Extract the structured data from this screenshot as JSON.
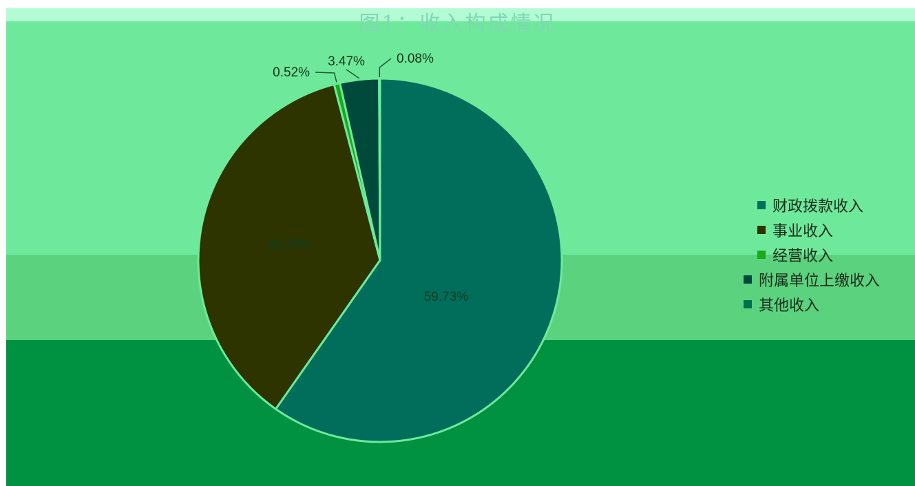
{
  "colors": {
    "background_top": "#b3fbd5",
    "background_main": "#6ee99b",
    "background_mid": "#5bd27e",
    "background_bottom": "#009241"
  },
  "chart_data": {
    "type": "pie",
    "title": "图1：收入构成情况",
    "legend_position": "right",
    "slices": [
      {
        "label": "财政拨款收入",
        "value": 59.73,
        "display": "59.73%",
        "color": "#006e5a"
      },
      {
        "label": "事业收入",
        "value": 36.2,
        "display": "36.20%",
        "color": "#2e3400"
      },
      {
        "label": "经营收入",
        "value": 0.52,
        "display": "0.52%",
        "color": "#1aa91a"
      },
      {
        "label": "附属单位上缴收入",
        "value": 3.47,
        "display": "3.47%",
        "color": "#004a3b"
      },
      {
        "label": "其他收入",
        "value": 0.08,
        "display": "0.08%",
        "color": "#00704d"
      }
    ]
  }
}
